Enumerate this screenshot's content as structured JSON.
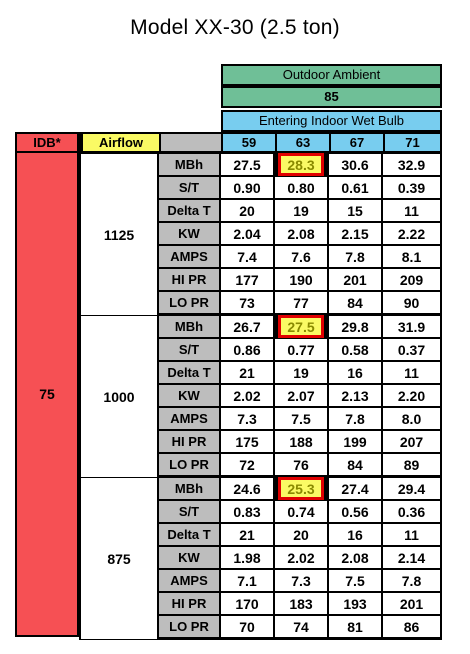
{
  "title": "Model XX-30 (2.5 ton)",
  "header": {
    "outdoor_label": "Outdoor Ambient",
    "outdoor_value": "85",
    "wet_bulb_label": "Entering Indoor Wet Bulb",
    "wet_bulbs": [
      "59",
      "63",
      "67",
      "71"
    ],
    "idb_label": "IDB*",
    "airflow_label": "Airflow"
  },
  "idb_value": "75",
  "row_labels": [
    "MBh",
    "S/T",
    "Delta T",
    "KW",
    "AMPS",
    "HI PR",
    "LO PR"
  ],
  "highlight": {
    "row": 0,
    "col": 1
  },
  "colors": {
    "idb": "#f65054",
    "airflow": "#fafa64",
    "outdoor": "#6fbf97",
    "wetbulb": "#78cdef",
    "label": "#bdbdbd",
    "highlight_border": "#e00000"
  },
  "blocks": [
    {
      "airflow": "1125",
      "rows": [
        [
          "27.5",
          "28.3",
          "30.6",
          "32.9"
        ],
        [
          "0.90",
          "0.80",
          "0.61",
          "0.39"
        ],
        [
          "20",
          "19",
          "15",
          "11"
        ],
        [
          "2.04",
          "2.08",
          "2.15",
          "2.22"
        ],
        [
          "7.4",
          "7.6",
          "7.8",
          "8.1"
        ],
        [
          "177",
          "190",
          "201",
          "209"
        ],
        [
          "73",
          "77",
          "84",
          "90"
        ]
      ]
    },
    {
      "airflow": "1000",
      "rows": [
        [
          "26.7",
          "27.5",
          "29.8",
          "31.9"
        ],
        [
          "0.86",
          "0.77",
          "0.58",
          "0.37"
        ],
        [
          "21",
          "19",
          "16",
          "11"
        ],
        [
          "2.02",
          "2.07",
          "2.13",
          "2.20"
        ],
        [
          "7.3",
          "7.5",
          "7.8",
          "8.0"
        ],
        [
          "175",
          "188",
          "199",
          "207"
        ],
        [
          "72",
          "76",
          "84",
          "89"
        ]
      ]
    },
    {
      "airflow": "875",
      "rows": [
        [
          "24.6",
          "25.3",
          "27.4",
          "29.4"
        ],
        [
          "0.83",
          "0.74",
          "0.56",
          "0.36"
        ],
        [
          "21",
          "20",
          "16",
          "11"
        ],
        [
          "1.98",
          "2.02",
          "2.08",
          "2.14"
        ],
        [
          "7.1",
          "7.3",
          "7.5",
          "7.8"
        ],
        [
          "170",
          "183",
          "193",
          "201"
        ],
        [
          "70",
          "74",
          "81",
          "86"
        ]
      ]
    }
  ]
}
